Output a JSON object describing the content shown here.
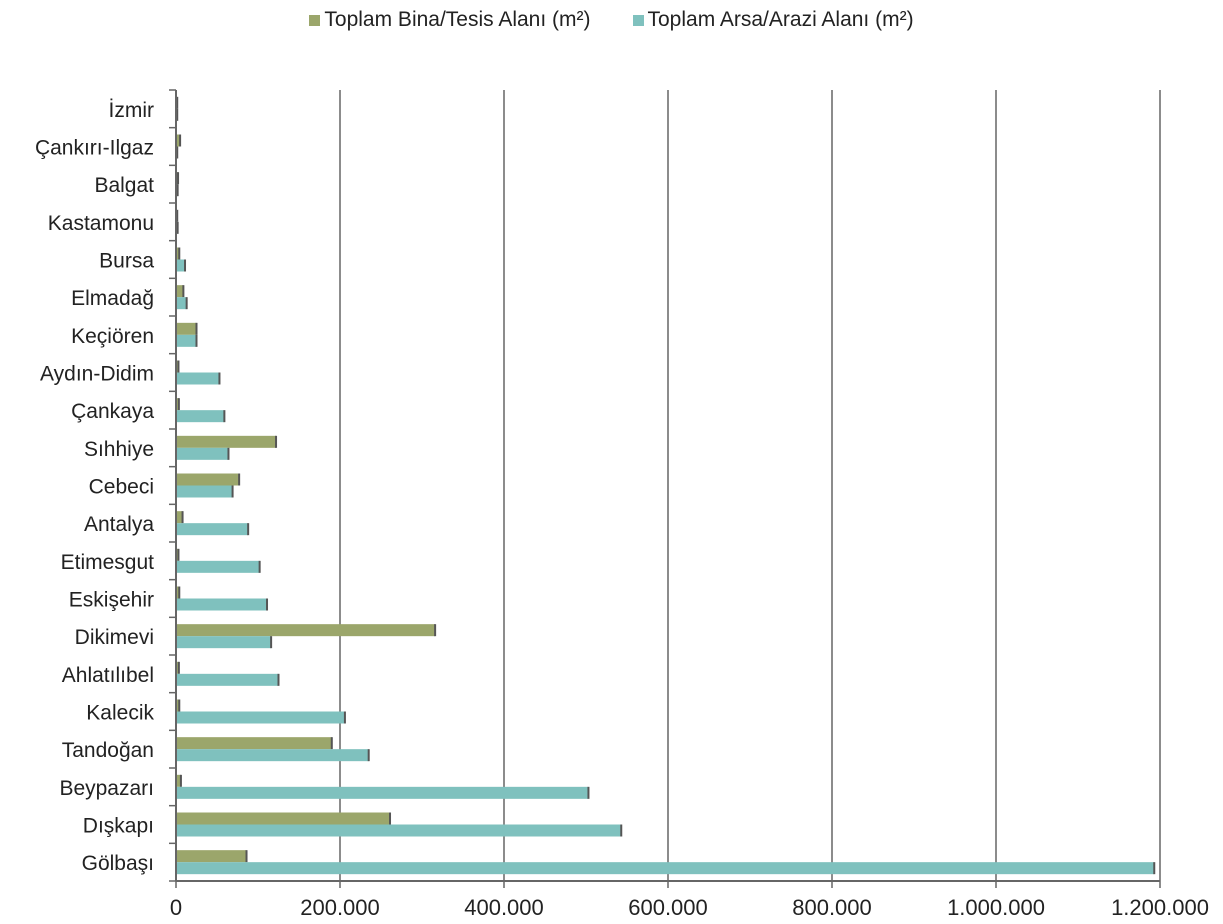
{
  "chart_data": {
    "type": "bar",
    "orientation": "horizontal",
    "categories": [
      "İzmir",
      "Çankırı-Ilgaz",
      "Balgat",
      "Kastamonu",
      "Bursa",
      "Elmadağ",
      "Keçiören",
      "Aydın-Didim",
      "Çankaya",
      "Sıhhiye",
      "Cebeci",
      "Antalya",
      "Etimesgut",
      "Eskişehir",
      "Dikimevi",
      "Ahlatılıbel",
      "Kalecik",
      "Tandoğan",
      "Beypazarı",
      "Dışkapı",
      "Gölbaşı"
    ],
    "series": [
      {
        "name": "Toplam Bina/Tesis Alanı (m²)",
        "color": "#9BA66B",
        "values": [
          1500,
          5000,
          2500,
          1500,
          4000,
          9000,
          25000,
          3000,
          3500,
          122000,
          77000,
          8000,
          3000,
          4000,
          316000,
          3500,
          4000,
          190000,
          6000,
          261000,
          86000
        ]
      },
      {
        "name": "Toplam Arsa/Arazi Alanı (m²)",
        "color": "#7FC1BE",
        "values": [
          1500,
          1500,
          2000,
          2000,
          11000,
          13000,
          25000,
          53000,
          59000,
          64000,
          69000,
          88000,
          102000,
          111000,
          116000,
          125000,
          206000,
          235000,
          503000,
          543000,
          1193000
        ]
      }
    ],
    "xlim": [
      0,
      1200000
    ],
    "xticks": [
      0,
      200000,
      400000,
      600000,
      800000,
      1000000,
      1200000
    ],
    "xtick_labels": [
      "0",
      "200.000",
      "400.000",
      "600.000",
      "800.000",
      "1.000.000",
      "1.200.000"
    ],
    "grid": true,
    "legend_position": "top-center"
  }
}
